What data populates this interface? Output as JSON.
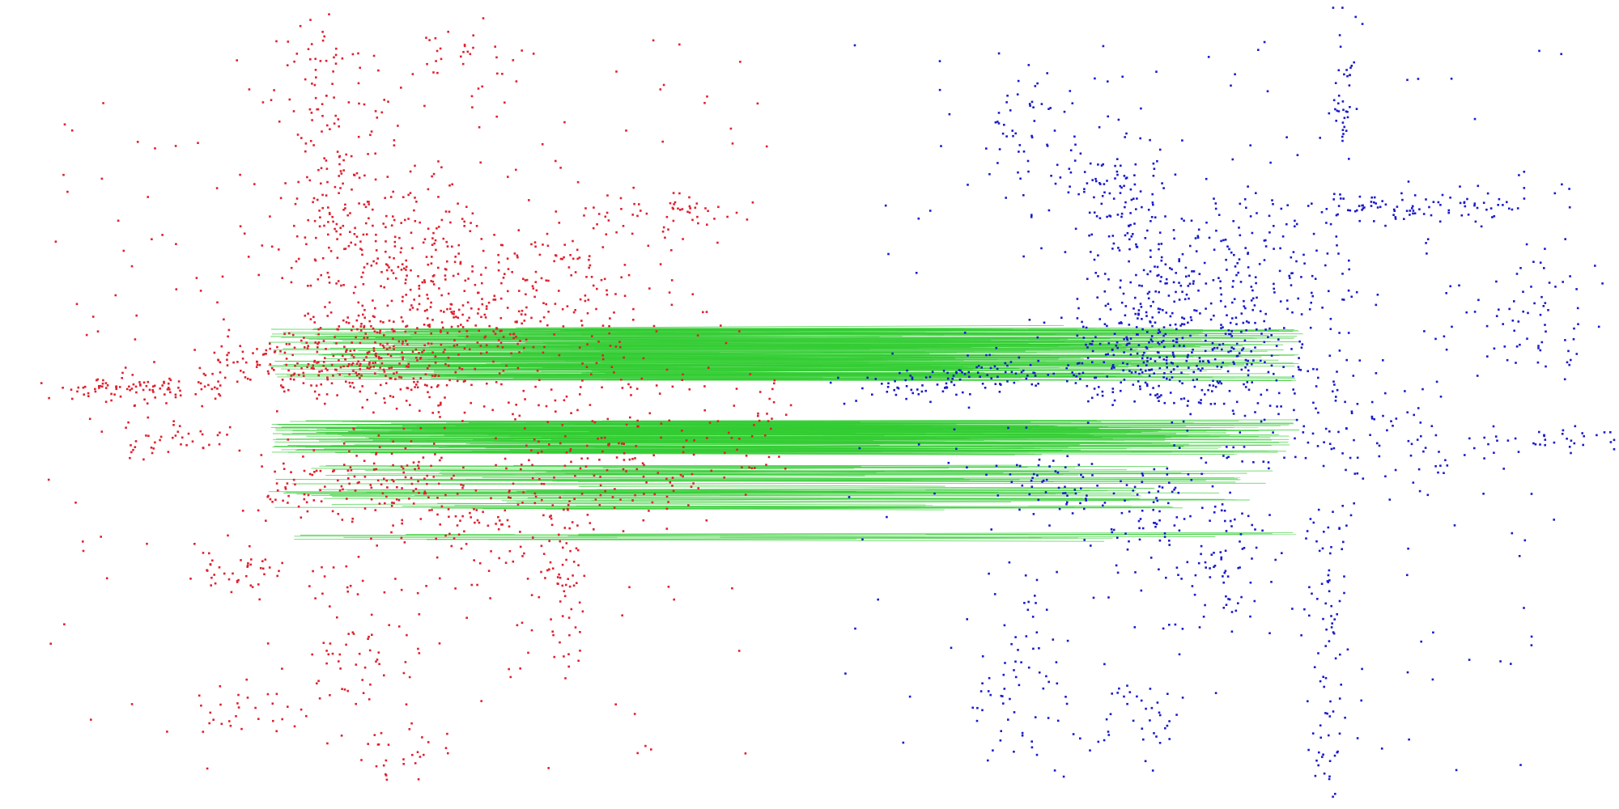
{
  "colors": {
    "background": "#ffffff",
    "source_points": "#e0202e",
    "target_points": "#1a1acc",
    "correspondence_lines": "#33cc33"
  },
  "legend": {
    "source": "",
    "target": "",
    "matches": ""
  },
  "title": ""
}
